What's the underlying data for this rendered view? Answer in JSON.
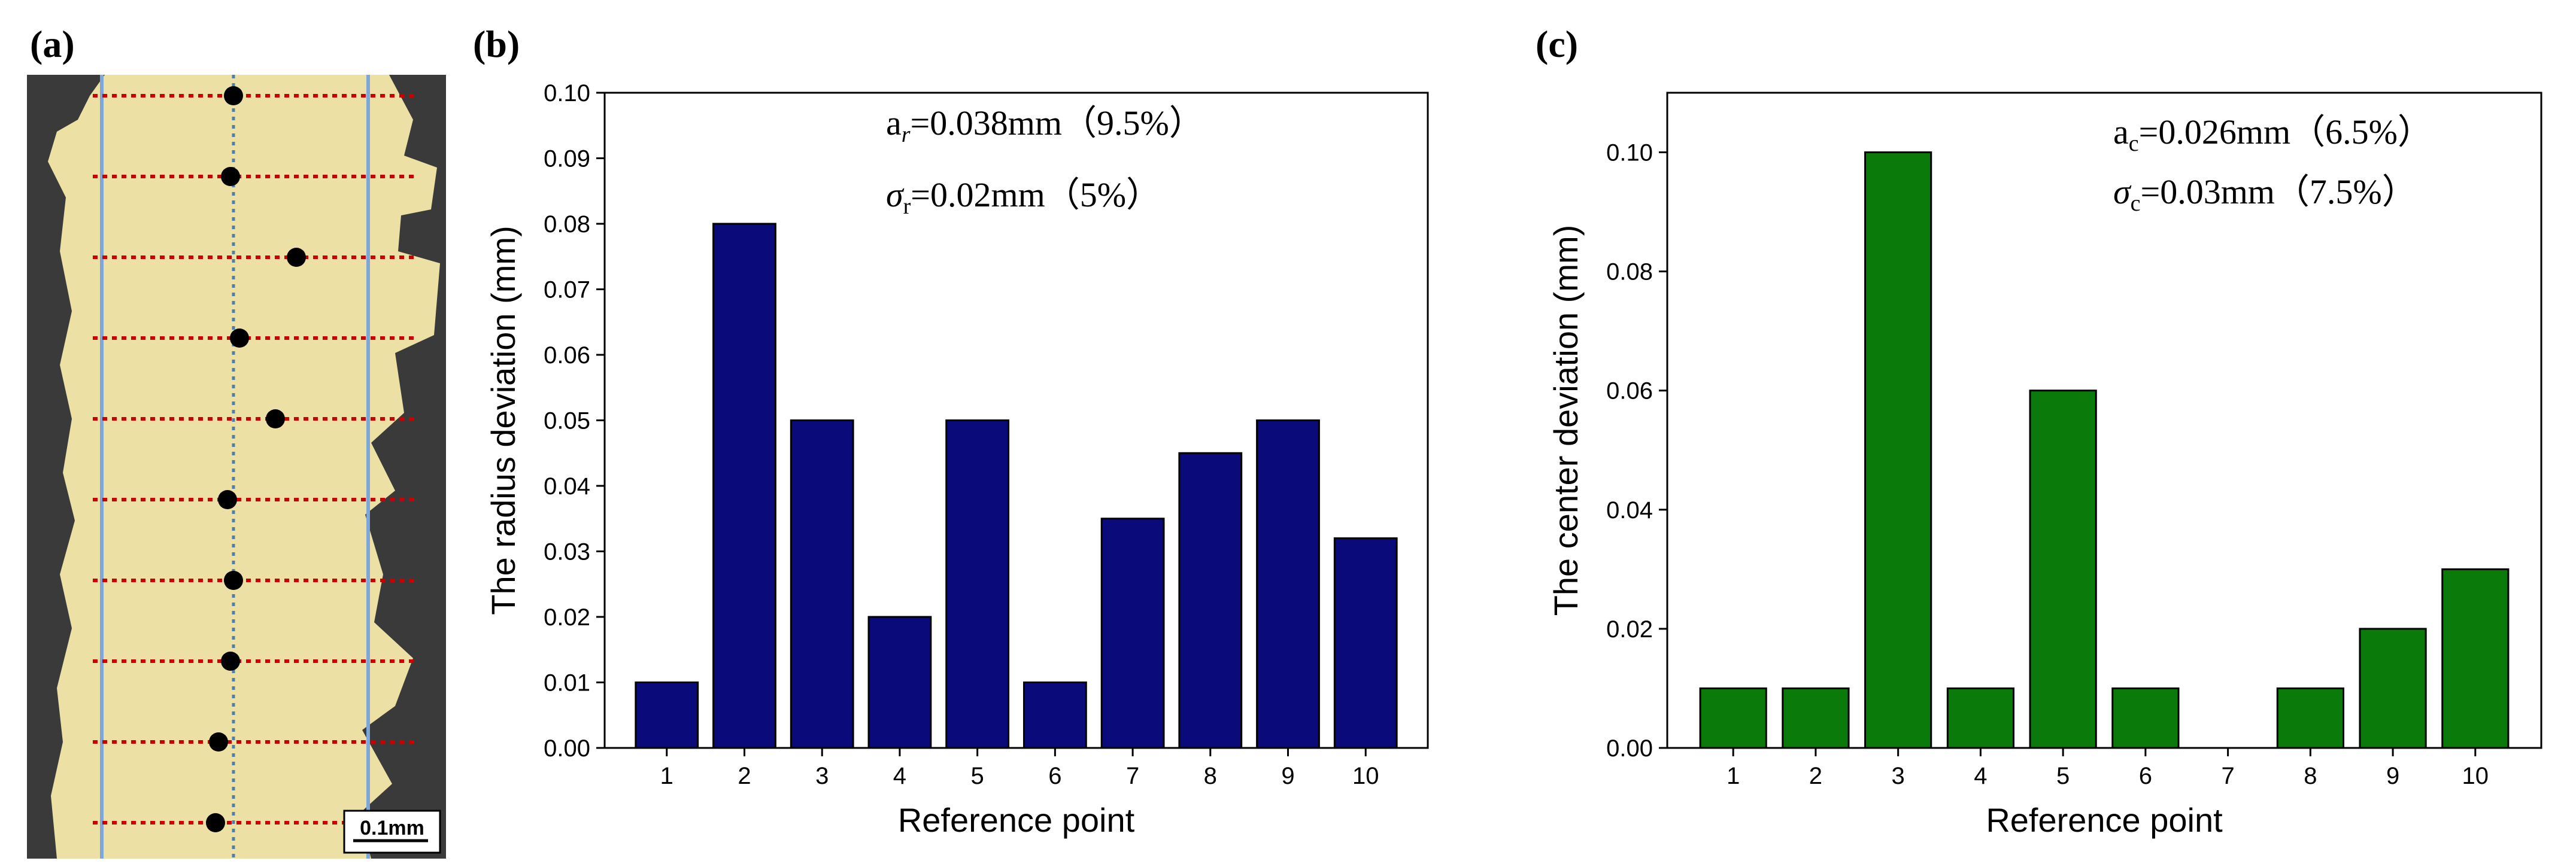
{
  "panels": {
    "a": {
      "label": "(a)",
      "scale_bar": "0.1mm"
    },
    "b": {
      "label": "(b)",
      "stat1": "a",
      "stat1_sub": "r",
      "stat1_value": "=0.038mm（9.5%）",
      "stat2": "σ",
      "stat2_sub": "r",
      "stat2_value": "=0.02mm（5%）"
    },
    "c": {
      "label": "(c)",
      "stat1": "a",
      "stat1_sub": "c",
      "stat1_value": "=0.026mm（6.5%）",
      "stat2": "σ",
      "stat2_sub": "c",
      "stat2_value": "=0.03mm（7.5%）"
    }
  },
  "colors": {
    "navy_bar": "#0a0a7a",
    "green_bar": "#0a7a0a",
    "photo_fill": "#ede0a4",
    "photo_bg": "#3a3a3a",
    "dots": "#cc0000",
    "guides": "#7da7d9"
  },
  "chart_data": [
    {
      "type": "bar",
      "categories": [
        "1",
        "2",
        "3",
        "4",
        "5",
        "6",
        "7",
        "8",
        "9",
        "10"
      ],
      "values": [
        0.01,
        0.08,
        0.05,
        0.02,
        0.05,
        0.01,
        0.035,
        0.045,
        0.05,
        0.032
      ],
      "xlabel": "Reference point",
      "ylabel": "The radius deviation (mm)",
      "ylim": [
        0,
        0.1
      ],
      "yticks": [
        "0.00",
        "0.01",
        "0.02",
        "0.03",
        "0.04",
        "0.05",
        "0.06",
        "0.07",
        "0.08",
        "0.09",
        "0.10"
      ],
      "grid": false
    },
    {
      "type": "bar",
      "categories": [
        "1",
        "2",
        "3",
        "4",
        "5",
        "6",
        "7",
        "8",
        "9",
        "10"
      ],
      "values": [
        0.01,
        0.01,
        0.1,
        0.01,
        0.06,
        0.01,
        0.0,
        0.01,
        0.02,
        0.03
      ],
      "xlabel": "Reference point",
      "ylabel": "The center deviation (mm)",
      "ylim": [
        0,
        0.11
      ],
      "yticks": [
        "0.00",
        "0.02",
        "0.04",
        "0.06",
        "0.08",
        "0.10"
      ],
      "grid": false
    }
  ]
}
